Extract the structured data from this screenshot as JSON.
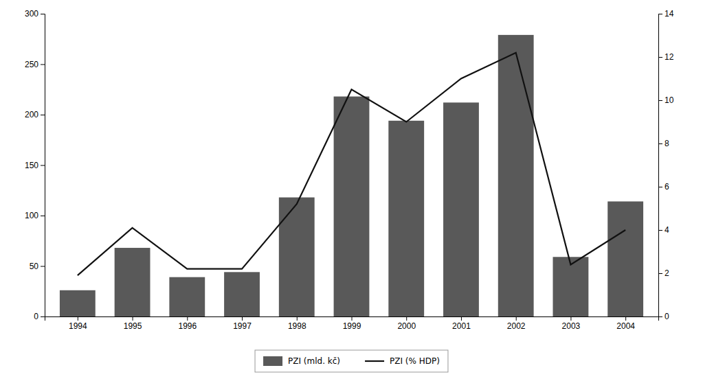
{
  "chart_data": {
    "type": "bar",
    "x": [
      1994,
      1995,
      1996,
      1997,
      1998,
      1999,
      2000,
      2001,
      2002,
      2003,
      2004
    ],
    "xlim": [
      1993.4,
      2004.6
    ],
    "xticks": [
      1994,
      1995,
      1996,
      1997,
      1998,
      1999,
      2000,
      2001,
      2002,
      2003,
      2004
    ],
    "series": [
      {
        "name": "PZI (mld. kč)",
        "type": "bar",
        "color": "#595959",
        "values": [
          26,
          68,
          39,
          44,
          118,
          218,
          194,
          212,
          279,
          59,
          114
        ]
      },
      {
        "name": "PZI (% HDP)",
        "type": "line",
        "axis": "y2",
        "color": "#111111",
        "values": [
          1.9,
          4.1,
          2.2,
          2.2,
          5.2,
          10.5,
          9.0,
          11.0,
          12.2,
          2.4,
          4.0
        ]
      }
    ],
    "ylim": [
      0,
      300
    ],
    "yticks": [
      0,
      50,
      100,
      150,
      200,
      250,
      300
    ],
    "y2lim": [
      0,
      14
    ],
    "y2ticks": [
      0,
      2,
      4,
      6,
      8,
      10,
      12,
      14
    ],
    "grid": false,
    "legend": "bottom"
  }
}
